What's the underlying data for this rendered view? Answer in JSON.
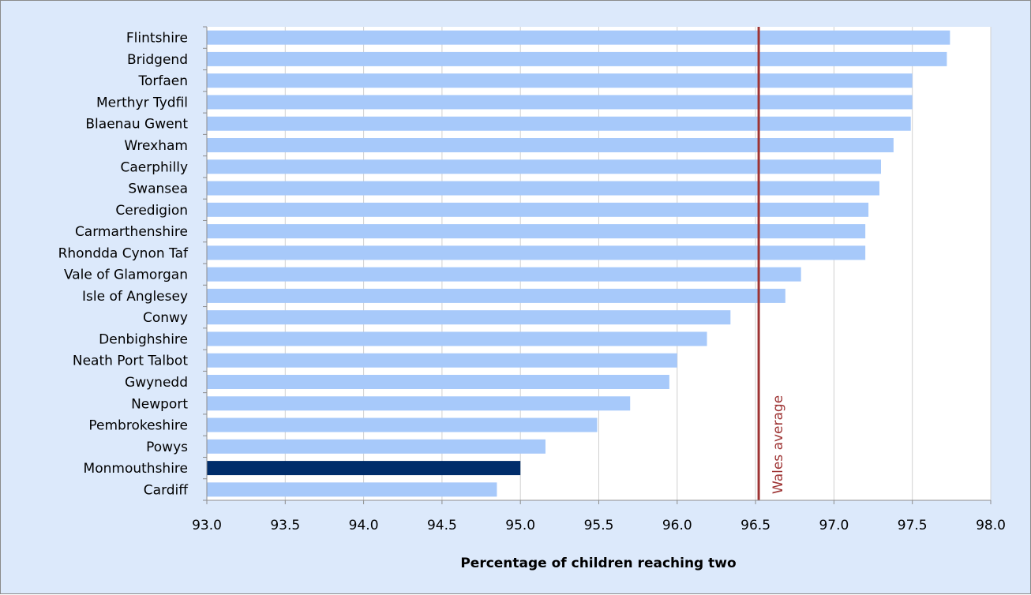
{
  "chart_data": {
    "type": "bar",
    "orientation": "horizontal",
    "title": "",
    "xlabel": "Percentage of children reaching two",
    "ylabel": "",
    "xlim": [
      93.0,
      98.0
    ],
    "x_ticks": [
      "93.0",
      "93.5",
      "94.0",
      "94.5",
      "95.0",
      "95.5",
      "96.0",
      "96.5",
      "97.0",
      "97.5",
      "98.0"
    ],
    "x_tick_values": [
      93.0,
      93.5,
      94.0,
      94.5,
      95.0,
      95.5,
      96.0,
      96.5,
      97.0,
      97.5,
      98.0
    ],
    "grid": "vertical",
    "categories": [
      "Flintshire",
      "Bridgend",
      "Torfaen",
      "Merthyr Tydfil",
      "Blaenau Gwent",
      "Wrexham",
      "Caerphilly",
      "Swansea",
      "Ceredigion",
      "Carmarthenshire",
      "Rhondda Cynon Taf",
      "Vale of Glamorgan",
      "Isle of Anglesey",
      "Conwy",
      "Denbighshire",
      "Neath Port Talbot",
      "Gwynedd",
      "Newport",
      "Pembrokeshire",
      "Powys",
      "Monmouthshire",
      "Cardiff"
    ],
    "values": [
      97.74,
      97.72,
      97.5,
      97.5,
      97.49,
      97.38,
      97.3,
      97.29,
      97.22,
      97.2,
      97.2,
      96.79,
      96.69,
      96.34,
      96.19,
      96.0,
      95.95,
      95.7,
      95.49,
      95.16,
      95.0,
      94.85
    ],
    "highlight": "Monmouthshire",
    "colors": {
      "bar": "#a7c9fa",
      "highlight": "#002d6b",
      "reference": "#9e3434",
      "grid": "#d0d0d0",
      "background": "#dce9fb",
      "plot_background": "#ffffff"
    },
    "reference_line": {
      "label": "Wales average",
      "value": 96.52
    }
  }
}
